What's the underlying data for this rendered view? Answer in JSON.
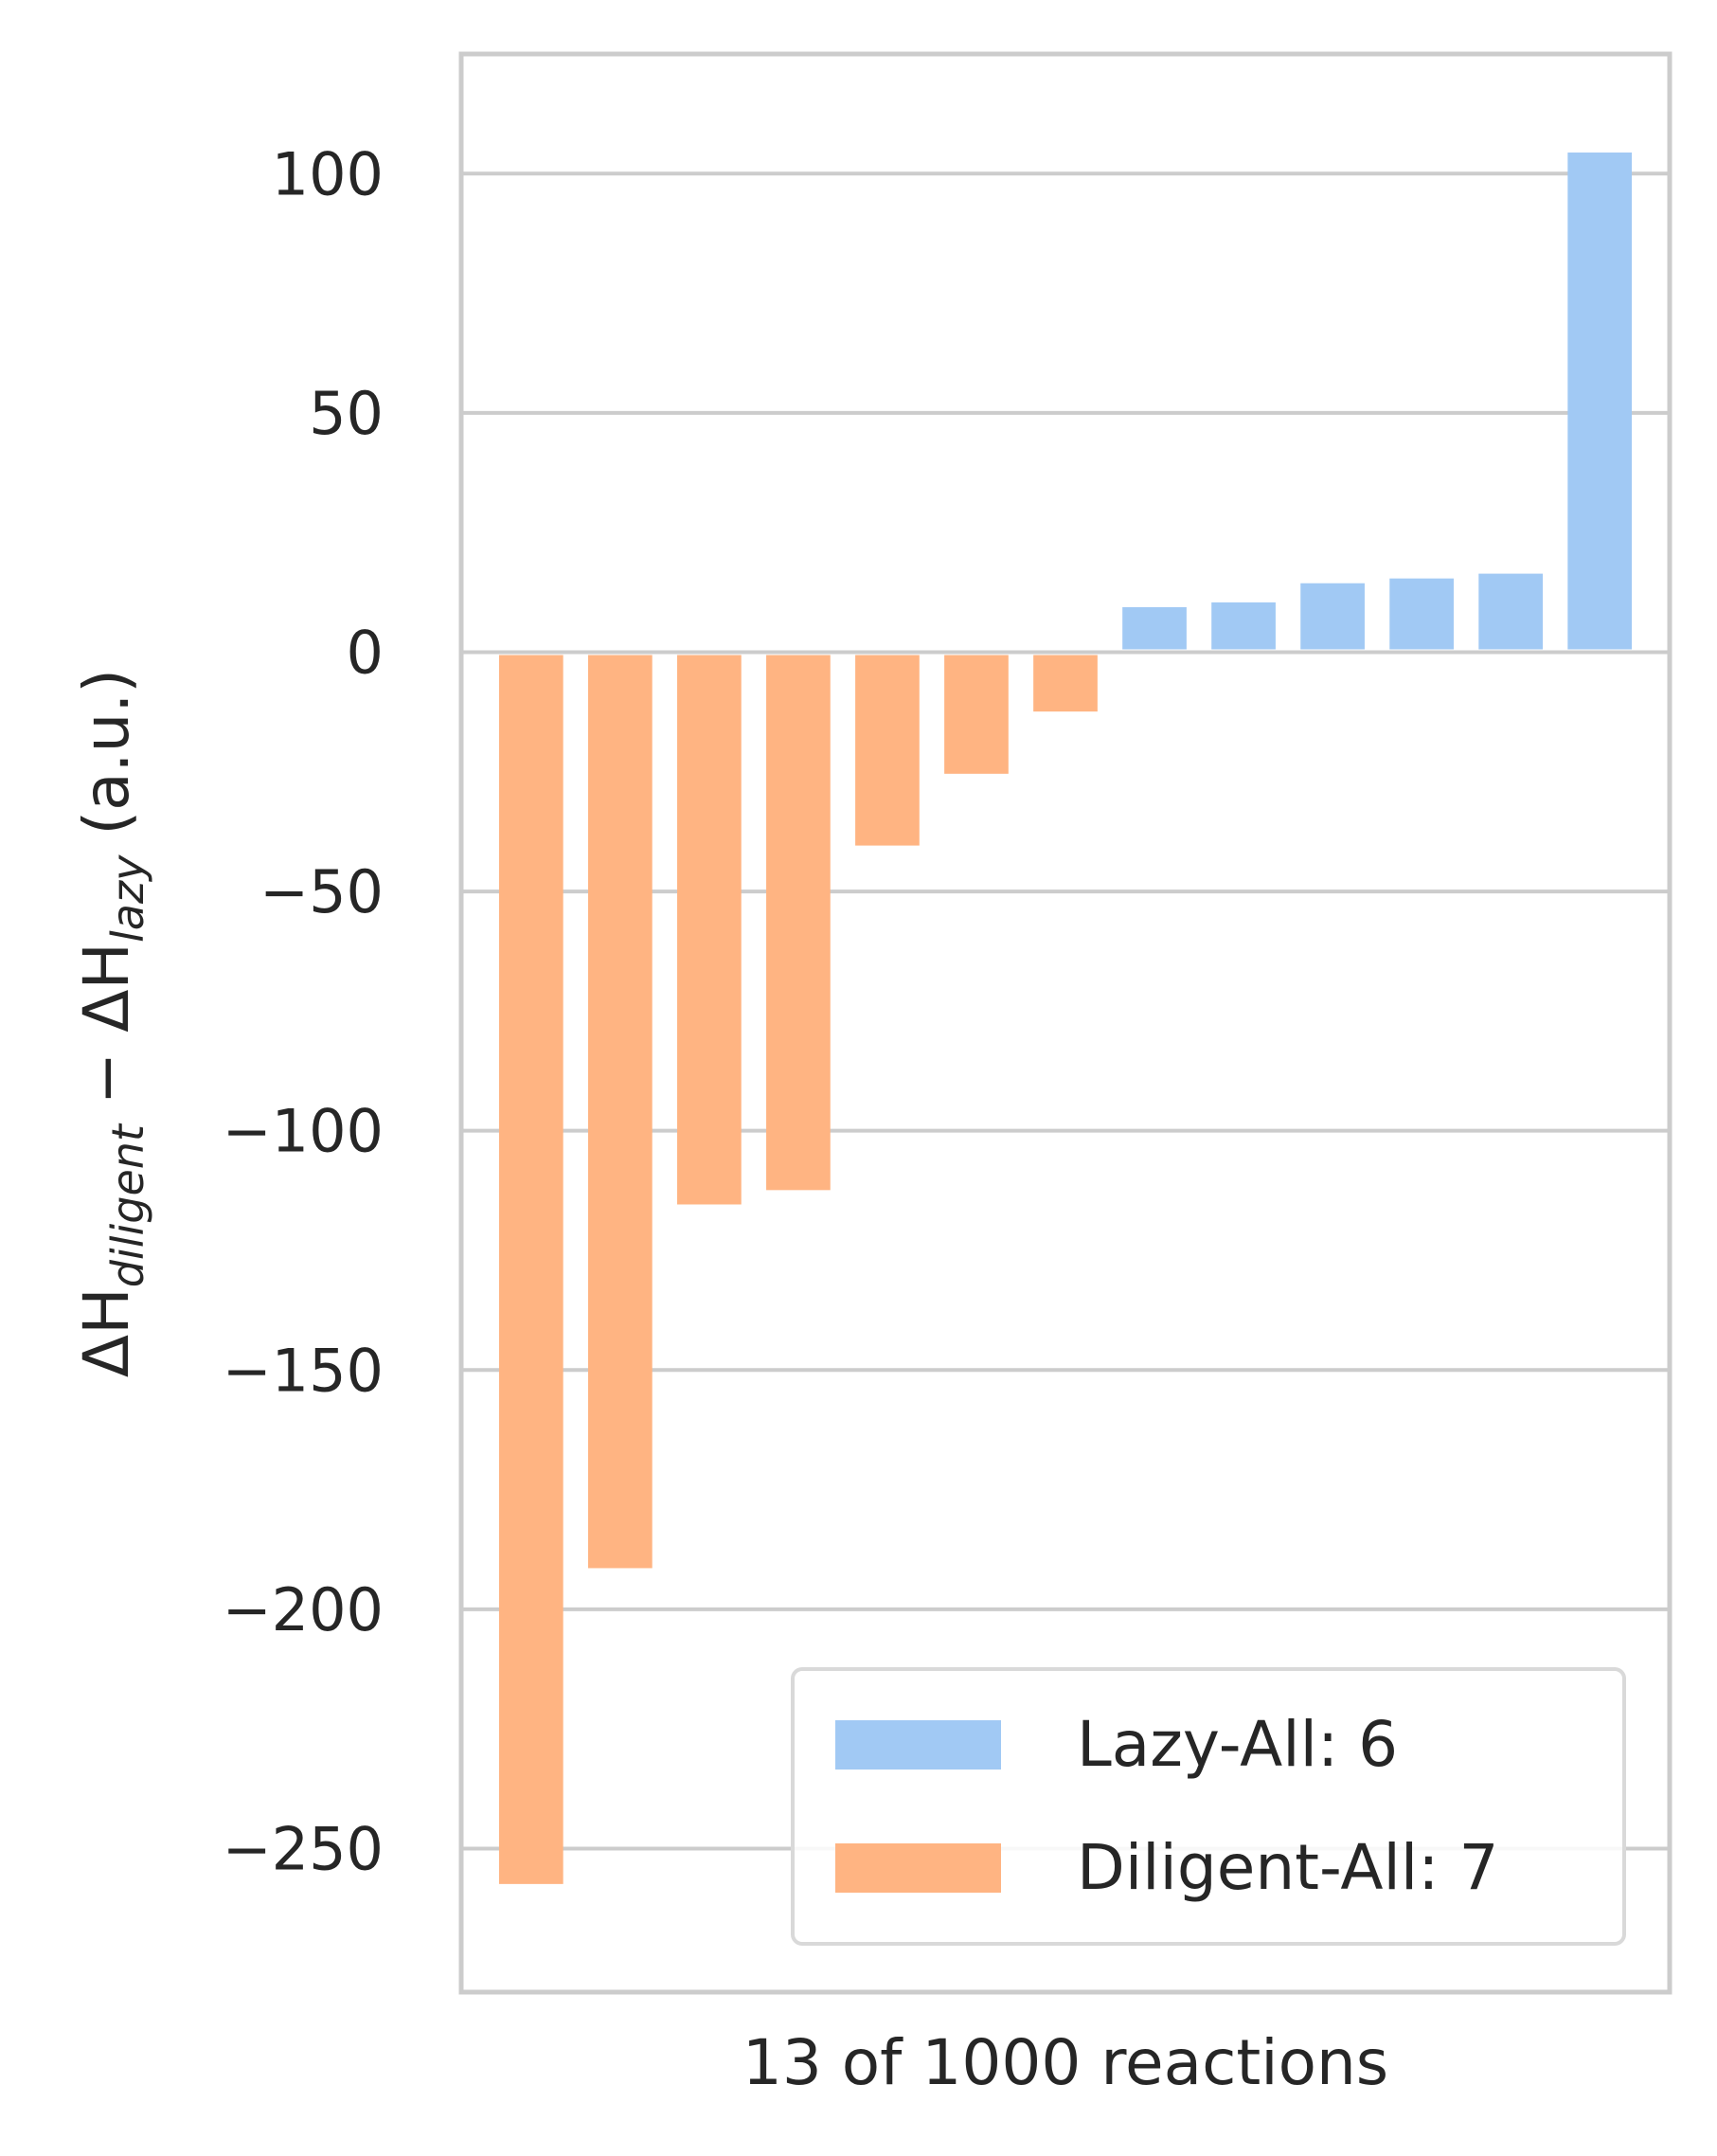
{
  "chart_data": {
    "type": "bar",
    "ylabel": "ΔH_diligent − ΔH_lazy (a.u.)",
    "ylabel_parts": {
      "sym1": "ΔH",
      "sub1": "diligent",
      "minus": " − ",
      "sym2": "ΔH",
      "sub2": "lazy",
      "unit": " (a.u.)"
    },
    "xlabel": "13 of 1000 reactions",
    "ylim": [
      -280,
      125
    ],
    "yticks": [
      100,
      50,
      0,
      -50,
      -100,
      -150,
      -200,
      -250
    ],
    "ytick_labels": [
      "100",
      "50",
      "0",
      "−50",
      "−100",
      "−150",
      "−200",
      "−250"
    ],
    "grid": true,
    "legend_position": "lower-right",
    "series": [
      {
        "name": "Diligent-All: 7",
        "color": "#ffb482",
        "values": [
          -258,
          -192,
          -116,
          -113,
          -41,
          -26,
          -13
        ]
      },
      {
        "name": "Lazy-All: 6",
        "color": "#a1c9f4",
        "values": [
          10,
          11,
          15,
          16,
          17,
          105
        ]
      }
    ],
    "legend": [
      {
        "label": "Lazy-All: 6",
        "color": "#a1c9f4"
      },
      {
        "label": "Diligent-All: 7",
        "color": "#ffb482"
      }
    ]
  }
}
